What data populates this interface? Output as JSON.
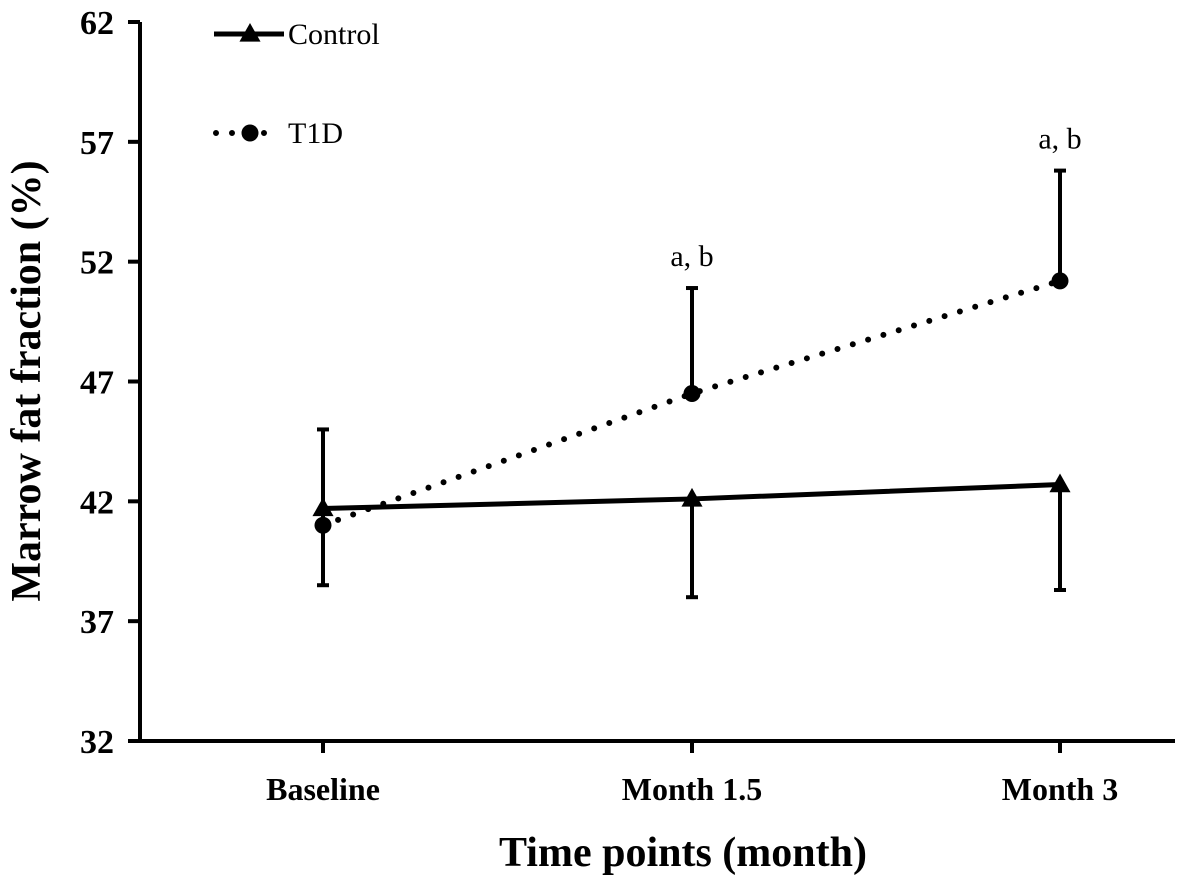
{
  "chart_data": {
    "type": "line",
    "title": "",
    "xlabel": "Time points (month)",
    "ylabel": "Marrow fat fraction (%)",
    "categories": [
      "Baseline",
      "Month 1.5",
      "Month 3"
    ],
    "ylim": [
      32,
      62
    ],
    "yticks": [
      "32",
      "37",
      "42",
      "47",
      "52",
      "57",
      "62"
    ],
    "grid": false,
    "legend_position": "top-left",
    "series": [
      {
        "name": "Control",
        "values": [
          41.7,
          42.1,
          42.7
        ],
        "error_low": [
          38.5,
          38.0,
          38.3
        ],
        "error_high": [
          45.0,
          null,
          null
        ],
        "marker": "triangle",
        "line_style": "solid",
        "color": "#000000"
      },
      {
        "name": "T1D",
        "values": [
          41.0,
          46.5,
          51.2
        ],
        "error_low": [
          null,
          null,
          null
        ],
        "error_high": [
          null,
          50.9,
          55.8
        ],
        "marker": "circle",
        "line_style": "dotted",
        "color": "#000000"
      }
    ],
    "annotations": [
      {
        "category": "Month 1.5",
        "text": "a, b"
      },
      {
        "category": "Month 3",
        "text": "a, b"
      }
    ]
  }
}
